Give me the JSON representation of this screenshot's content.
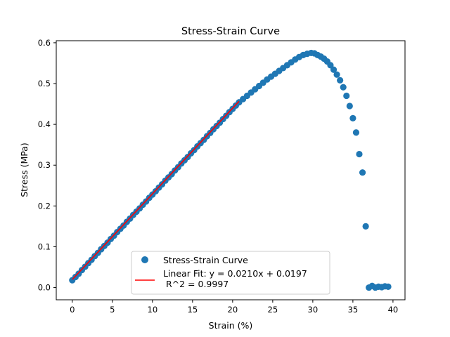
{
  "chart_data": {
    "type": "scatter",
    "title": "Stress-Strain Curve",
    "xlabel": "Strain (%)",
    "ylabel": "Stress (MPa)",
    "xlim": [
      -2.0,
      41.5
    ],
    "ylim": [
      -0.03,
      0.605
    ],
    "xticks": [
      0,
      5,
      10,
      15,
      20,
      25,
      30,
      35,
      40
    ],
    "yticks": [
      0.0,
      0.1,
      0.2,
      0.3,
      0.4,
      0.5,
      0.6
    ],
    "xtick_labels": [
      "0",
      "5",
      "10",
      "15",
      "20",
      "25",
      "30",
      "35",
      "40"
    ],
    "ytick_labels": [
      "0.0",
      "0.1",
      "0.2",
      "0.3",
      "0.4",
      "0.5",
      "0.6"
    ],
    "grid": false,
    "legend_position": "lower-center",
    "colors": {
      "scatter": "#1f77b4",
      "fit": "#ff0000"
    },
    "series": [
      {
        "name": "Stress-Strain Curve",
        "kind": "scatter",
        "x": [
          0.0,
          0.4,
          0.8,
          1.2,
          1.6,
          2.0,
          2.4,
          2.8,
          3.2,
          3.6,
          4.0,
          4.4,
          4.8,
          5.2,
          5.6,
          6.0,
          6.4,
          6.8,
          7.2,
          7.6,
          8.0,
          8.4,
          8.8,
          9.2,
          9.6,
          10.0,
          10.4,
          10.8,
          11.2,
          11.6,
          12.0,
          12.4,
          12.8,
          13.2,
          13.6,
          14.0,
          14.4,
          14.8,
          15.2,
          15.6,
          16.0,
          16.4,
          16.8,
          17.2,
          17.6,
          18.0,
          18.4,
          18.8,
          19.2,
          19.6,
          20.0,
          20.4,
          20.8,
          21.3,
          21.8,
          22.3,
          22.8,
          23.3,
          23.8,
          24.3,
          24.8,
          25.3,
          25.8,
          26.3,
          26.8,
          27.3,
          27.8,
          28.3,
          28.8,
          29.3,
          29.8,
          30.2,
          30.6,
          31.0,
          31.4,
          31.8,
          32.2,
          32.6,
          33.0,
          33.4,
          33.8,
          34.2,
          34.6,
          35.0,
          35.4,
          35.8,
          36.2,
          36.6,
          37.0,
          37.4,
          37.8,
          38.2,
          38.6,
          39.0,
          39.4
        ],
        "y": [
          0.018,
          0.026,
          0.034,
          0.043,
          0.051,
          0.06,
          0.068,
          0.077,
          0.085,
          0.094,
          0.102,
          0.11,
          0.119,
          0.127,
          0.136,
          0.144,
          0.152,
          0.161,
          0.169,
          0.178,
          0.186,
          0.194,
          0.203,
          0.211,
          0.22,
          0.228,
          0.236,
          0.245,
          0.253,
          0.262,
          0.27,
          0.278,
          0.287,
          0.295,
          0.304,
          0.312,
          0.32,
          0.329,
          0.337,
          0.346,
          0.354,
          0.362,
          0.371,
          0.379,
          0.388,
          0.396,
          0.404,
          0.413,
          0.421,
          0.43,
          0.438,
          0.446,
          0.454,
          0.462,
          0.47,
          0.478,
          0.486,
          0.494,
          0.502,
          0.51,
          0.517,
          0.524,
          0.531,
          0.538,
          0.545,
          0.552,
          0.559,
          0.565,
          0.57,
          0.573,
          0.575,
          0.574,
          0.57,
          0.566,
          0.561,
          0.554,
          0.545,
          0.534,
          0.522,
          0.508,
          0.491,
          0.47,
          0.445,
          0.415,
          0.38,
          0.327,
          0.282,
          0.15,
          0.0,
          0.004,
          0.0,
          0.002,
          0.001,
          0.003,
          0.002
        ]
      },
      {
        "name": "Linear Fit: y = 0.0210x + 0.0197\n R^2 = 0.9997",
        "kind": "line",
        "x": [
          0,
          20.8
        ],
        "y": [
          0.0197,
          0.4565
        ]
      }
    ]
  }
}
